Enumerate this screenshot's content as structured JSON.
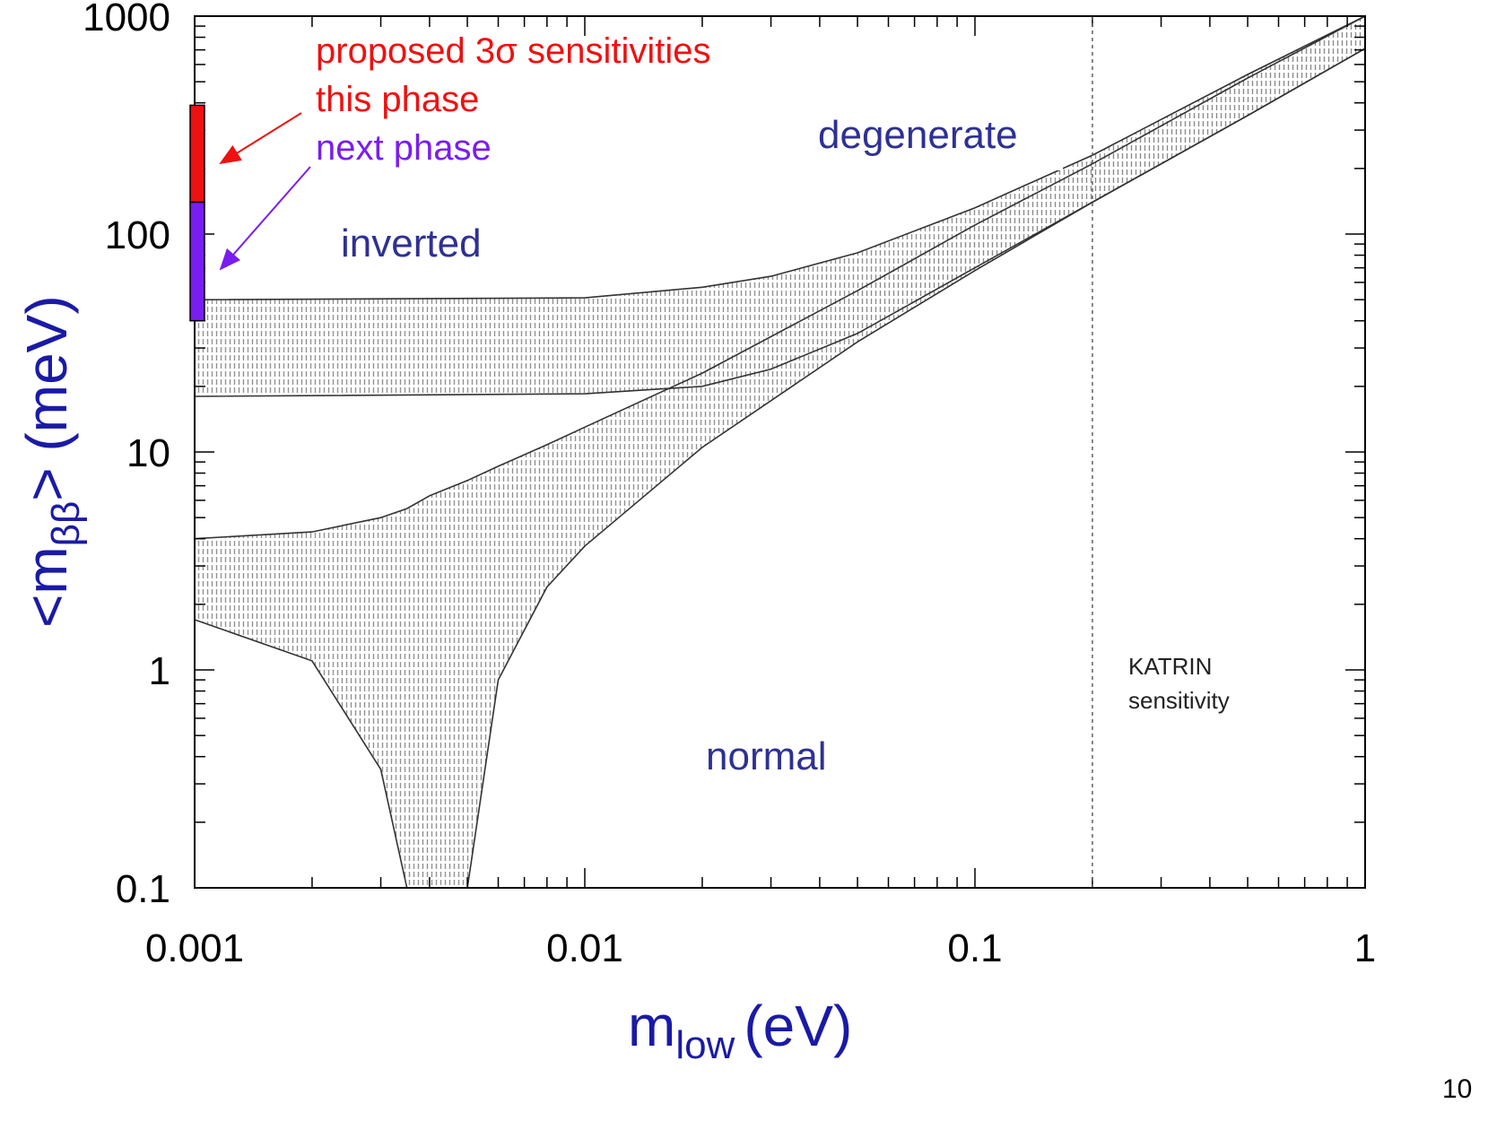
{
  "chart_data": {
    "type": "area",
    "x_scale": "log",
    "y_scale": "log",
    "xlim": [
      0.001,
      1
    ],
    "ylim": [
      0.1,
      1000
    ],
    "xlabel_main": "m",
    "xlabel_sub": "low",
    "xlabel_unit": "(eV)",
    "ylabel_main": "<m",
    "ylabel_sub": "ββ",
    "ylabel_unit": "> (meV)",
    "x_ticks": [
      "0.001",
      "0.01",
      "0.1",
      "1"
    ],
    "y_ticks": [
      "0.1",
      "1",
      "10",
      "100",
      "1000"
    ],
    "regions": {
      "inverted": "inverted",
      "degenerate": "degenerate",
      "normal": "normal"
    },
    "katrin": {
      "line1": "KATRIN",
      "line2": "sensitivity",
      "x": 0.2
    },
    "legend": {
      "title": "proposed 3σ sensitivities",
      "this_phase": "this phase",
      "next_phase": "next phase",
      "this_phase_color": "#ee1111",
      "next_phase_color": "#7a1df0"
    },
    "sensitivity_bars": [
      {
        "name": "this phase",
        "y_low": 140,
        "y_high": 390
      },
      {
        "name": "next phase",
        "y_low": 40,
        "y_high": 140
      }
    ],
    "series": [
      {
        "name": "inverted",
        "x": [
          0.001,
          0.01,
          0.02,
          0.03,
          0.05,
          0.1,
          0.2,
          0.5,
          1
        ],
        "y_low": [
          18,
          18.5,
          20,
          24,
          35,
          70,
          140,
          350,
          710
        ],
        "y_high": [
          50,
          51,
          57,
          64,
          82,
          132,
          230,
          540,
          1000
        ]
      },
      {
        "name": "normal",
        "x": [
          0.001,
          0.002,
          0.003,
          0.0035,
          0.004,
          0.005,
          0.006,
          0.008,
          0.01,
          0.02,
          0.05,
          0.1,
          0.2,
          0.5,
          1
        ],
        "y_low": [
          1.7,
          1.1,
          0.35,
          0.1,
          0.1,
          0.1,
          0.9,
          2.4,
          3.7,
          10.5,
          32,
          68,
          140,
          350,
          710
        ],
        "y_high": [
          4.0,
          4.3,
          5.0,
          5.5,
          6.3,
          7.4,
          8.6,
          10.8,
          13,
          23,
          55,
          110,
          210,
          520,
          1000
        ]
      }
    ]
  },
  "page_number": "10"
}
